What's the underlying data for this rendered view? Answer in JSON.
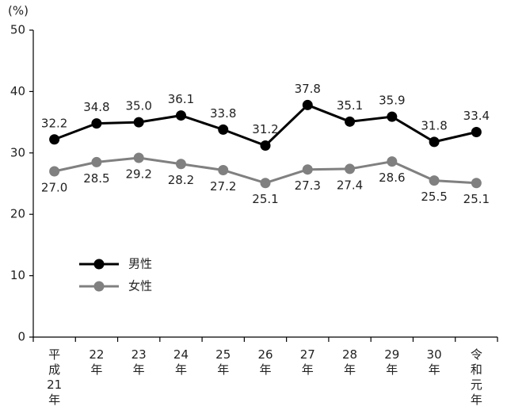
{
  "chart_data": {
    "type": "line",
    "y_label": "(%)",
    "categories": [
      "平成21年",
      "22年",
      "23年",
      "24年",
      "25年",
      "26年",
      "27年",
      "28年",
      "29年",
      "30年",
      "令和元年"
    ],
    "series": [
      {
        "name": "男性",
        "color": "#000000",
        "values": [
          32.2,
          34.8,
          35.0,
          36.1,
          33.8,
          31.2,
          37.8,
          35.1,
          35.9,
          31.8,
          33.4
        ],
        "value_labels": [
          "32.2",
          "34.8",
          "35.0",
          "36.1",
          "33.8",
          "31.2",
          "37.8",
          "35.1",
          "35.9",
          "31.8",
          "33.4"
        ]
      },
      {
        "name": "女性",
        "color": "#808080",
        "values": [
          27.0,
          28.5,
          29.2,
          28.2,
          27.2,
          25.1,
          27.3,
          27.4,
          28.6,
          25.5,
          25.1
        ],
        "value_labels": [
          "27.0",
          "28.5",
          "29.2",
          "28.2",
          "27.2",
          "25.1",
          "27.3",
          "27.4",
          "28.6",
          "25.5",
          "25.1"
        ]
      }
    ],
    "ylim": [
      0,
      50
    ],
    "yticks": [
      0,
      10,
      20,
      30,
      40,
      50
    ],
    "grid": false,
    "legend": "lower left"
  }
}
